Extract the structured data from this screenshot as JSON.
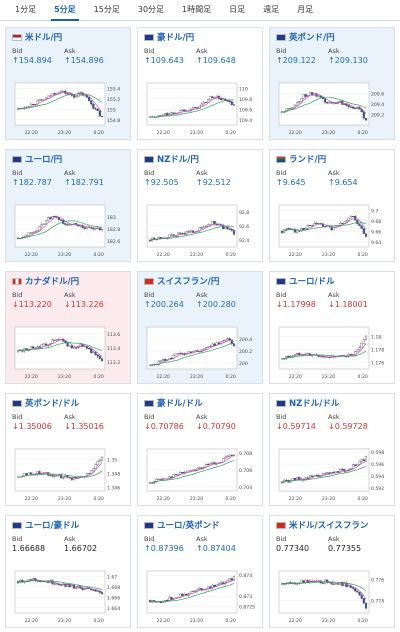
{
  "tabs": [
    {
      "label": "1分足",
      "active": false
    },
    {
      "label": "5分足",
      "active": true
    },
    {
      "label": "15分足",
      "active": false
    },
    {
      "label": "30分足",
      "active": false
    },
    {
      "label": "1時間足",
      "active": false
    },
    {
      "label": "日足",
      "active": false
    },
    {
      "label": "週足",
      "active": false
    },
    {
      "label": "月足",
      "active": false
    }
  ],
  "bid_label": "Bid",
  "ask_label": "Ask",
  "colors": {
    "up": "#1b6ab5",
    "down": "#d23232",
    "ma_short": "#d64dd6",
    "ma_long": "#2aa84a",
    "candle_up": "#ffffff",
    "candle_down": "#2c5aa8"
  },
  "cards": [
    {
      "pair": "米ドル/円",
      "flag": "us",
      "bg": "blue",
      "dir": "up",
      "bid": "154.894",
      "ask": "154.896",
      "chart_data": {
        "type": "candlestick",
        "x_ticks": [
          "22:20",
          "23:20",
          "0:20"
        ],
        "y_ticks": [
          "155.4",
          "155.2",
          "155",
          "154.8"
        ],
        "ylim": [
          154.7,
          155.5
        ],
        "trend": [
          155.0,
          155.05,
          155.1,
          155.15,
          155.2,
          155.3,
          155.35,
          155.3,
          155.25,
          155.3,
          155.2,
          155.0,
          154.85
        ]
      }
    },
    {
      "pair": "豪ドル/円",
      "flag": "au",
      "bg": "white",
      "dir": "up",
      "bid": "109.643",
      "ask": "109.648",
      "chart_data": {
        "type": "candlestick",
        "x_ticks": [
          "22:20",
          "23:20",
          "0:20"
        ],
        "y_ticks": [
          "110",
          "109.8",
          "109.6",
          "109.4"
        ],
        "ylim": [
          109.3,
          110.1
        ],
        "trend": [
          109.45,
          109.45,
          109.5,
          109.5,
          109.55,
          109.6,
          109.6,
          109.65,
          109.75,
          109.85,
          109.8,
          109.75,
          109.65
        ]
      }
    },
    {
      "pair": "英ポンド/円",
      "flag": "uk",
      "bg": "blue",
      "dir": "up",
      "bid": "209.122",
      "ask": "209.130",
      "chart_data": {
        "type": "candlestick",
        "x_ticks": [
          "22:20",
          "23:20",
          "0:20"
        ],
        "y_ticks": [
          "209.6",
          "209.4",
          "209.2"
        ],
        "ylim": [
          209.0,
          209.8
        ],
        "trend": [
          209.25,
          209.3,
          209.4,
          209.55,
          209.6,
          209.55,
          209.45,
          209.4,
          209.45,
          209.4,
          209.35,
          209.3,
          209.1
        ]
      }
    },
    {
      "pair": "ユーロ/円",
      "flag": "eu",
      "bg": "blue",
      "dir": "up",
      "bid": "182.787",
      "ask": "182.791",
      "chart_data": {
        "type": "candlestick",
        "x_ticks": [
          "22:20",
          "23:20",
          "0:20"
        ],
        "y_ticks": [
          "183",
          "182.8",
          "182.6"
        ],
        "ylim": [
          182.5,
          183.2
        ],
        "trend": [
          182.65,
          182.7,
          182.75,
          182.8,
          182.95,
          183.0,
          182.95,
          182.85,
          182.9,
          182.85,
          182.8,
          182.8,
          182.78
        ]
      }
    },
    {
      "pair": "NZドル/円",
      "flag": "nz",
      "bg": "white",
      "dir": "up",
      "bid": "92.505",
      "ask": "92.512",
      "chart_data": {
        "type": "candlestick",
        "x_ticks": [
          "22:20",
          "23:20",
          "0:20"
        ],
        "y_ticks": [
          "92.8",
          "92.6",
          "92.4"
        ],
        "ylim": [
          92.3,
          92.9
        ],
        "trend": [
          92.4,
          92.42,
          92.45,
          92.45,
          92.48,
          92.5,
          92.52,
          92.55,
          92.6,
          92.65,
          92.6,
          92.55,
          92.5
        ]
      }
    },
    {
      "pair": "ランド/円",
      "flag": "za",
      "bg": "white",
      "dir": "up",
      "bid": "9.645",
      "ask": "9.654",
      "chart_data": {
        "type": "candlestick",
        "x_ticks": [
          "22:20",
          "23:20",
          "0:20"
        ],
        "y_ticks": [
          "9.7",
          "9.68",
          "9.66",
          "9.64"
        ],
        "ylim": [
          9.63,
          9.71
        ],
        "trend": [
          9.66,
          9.665,
          9.66,
          9.665,
          9.67,
          9.675,
          9.67,
          9.665,
          9.67,
          9.68,
          9.69,
          9.67,
          9.65
        ]
      }
    },
    {
      "pair": "カナダドル/円",
      "flag": "ca",
      "bg": "pink",
      "dir": "down",
      "bid": "113.220",
      "ask": "113.226",
      "chart_data": {
        "type": "candlestick",
        "x_ticks": [
          "22:20",
          "23:20",
          "0:20"
        ],
        "y_ticks": [
          "113.6",
          "113.4",
          "113.2"
        ],
        "ylim": [
          113.1,
          113.7
        ],
        "trend": [
          113.35,
          113.38,
          113.4,
          113.42,
          113.45,
          113.5,
          113.52,
          113.45,
          113.4,
          113.45,
          113.4,
          113.3,
          113.2
        ]
      }
    },
    {
      "pair": "スイスフラン/円",
      "flag": "ch",
      "bg": "blue",
      "dir": "up",
      "bid": "200.264",
      "ask": "200.280",
      "chart_data": {
        "type": "candlestick",
        "x_ticks": [
          "22:20",
          "23:20",
          "0:20"
        ],
        "y_ticks": [
          "200.4",
          "200.2",
          "200"
        ],
        "ylim": [
          199.9,
          200.6
        ],
        "trend": [
          199.95,
          200.0,
          200.05,
          200.1,
          200.15,
          200.15,
          200.2,
          200.2,
          200.25,
          200.3,
          200.35,
          200.4,
          200.3
        ]
      }
    },
    {
      "pair": "ユーロ/ドル",
      "flag": "eu",
      "bg": "white",
      "dir": "down",
      "bid": "1.17998",
      "ask": "1.18001",
      "chart_data": {
        "type": "candlestick",
        "x_ticks": [
          "22:20",
          "23:20",
          "0:20"
        ],
        "y_ticks": [
          "1.18",
          "1.178",
          "1.176"
        ],
        "ylim": [
          1.175,
          1.1815
        ],
        "trend": [
          1.1765,
          1.177,
          1.1772,
          1.1775,
          1.1772,
          1.177,
          1.1768,
          1.177,
          1.1768,
          1.1772,
          1.177,
          1.178,
          1.18
        ]
      }
    },
    {
      "pair": "英ポンド/ドル",
      "flag": "uk",
      "bg": "white",
      "dir": "down",
      "bid": "1.35006",
      "ask": "1.35016",
      "chart_data": {
        "type": "candlestick",
        "x_ticks": [
          "22:20",
          "23:20",
          "0:20"
        ],
        "y_ticks": [
          "1.35",
          "1.348",
          "1.346"
        ],
        "ylim": [
          1.3455,
          1.3515
        ],
        "trend": [
          1.3475,
          1.348,
          1.3478,
          1.3482,
          1.348,
          1.3478,
          1.3476,
          1.3475,
          1.3473,
          1.3476,
          1.348,
          1.349,
          1.3505
        ]
      }
    },
    {
      "pair": "豪ドル/ドル",
      "flag": "au",
      "bg": "white",
      "dir": "down",
      "bid": "0.70786",
      "ask": "0.70790",
      "chart_data": {
        "type": "candlestick",
        "x_ticks": [
          "22:20",
          "23:20",
          "0:20"
        ],
        "y_ticks": [
          "0.708",
          "0.706",
          "0.704"
        ],
        "ylim": [
          0.7035,
          0.7085
        ],
        "trend": [
          0.7045,
          0.7048,
          0.705,
          0.7052,
          0.7055,
          0.7058,
          0.706,
          0.7062,
          0.7065,
          0.7068,
          0.707,
          0.7075,
          0.7078
        ]
      }
    },
    {
      "pair": "NZドル/ドル",
      "flag": "nz",
      "bg": "white",
      "dir": "down",
      "bid": "0.59714",
      "ask": "0.59728",
      "chart_data": {
        "type": "candlestick",
        "x_ticks": [
          "22:20",
          "23:20",
          "0:20"
        ],
        "y_ticks": [
          "0.598",
          "0.596",
          "0.594",
          "0.592"
        ],
        "ylim": [
          0.5915,
          0.5985
        ],
        "trend": [
          0.593,
          0.5932,
          0.5935,
          0.5935,
          0.5938,
          0.594,
          0.5942,
          0.5945,
          0.5948,
          0.595,
          0.5955,
          0.5962,
          0.597
        ]
      }
    },
    {
      "pair": "ユーロ/豪ドル",
      "flag": "euau",
      "bg": "white",
      "dir": "flat",
      "bid": "1.66688",
      "ask": "1.66702",
      "chart_data": {
        "type": "candlestick",
        "x_ticks": [
          "22:20",
          "23:20",
          "0:20"
        ],
        "y_ticks": [
          "1.67",
          "1.668",
          "1.666",
          "1.664"
        ],
        "ylim": [
          1.663,
          1.671
        ],
        "trend": [
          1.669,
          1.6692,
          1.6695,
          1.6692,
          1.669,
          1.6688,
          1.6685,
          1.6683,
          1.668,
          1.6678,
          1.6675,
          1.667,
          1.6668
        ]
      }
    },
    {
      "pair": "ユーロ/英ポンド",
      "flag": "euuk",
      "bg": "white",
      "dir": "up",
      "bid": "0.87396",
      "ask": "0.87404",
      "chart_data": {
        "type": "candlestick",
        "x_ticks": [
          "22:20",
          "23:20",
          "0:20"
        ],
        "y_ticks": [
          "0.874",
          "0.873",
          "0.8725"
        ],
        "ylim": [
          0.8722,
          0.8742
        ],
        "trend": [
          0.8728,
          0.8727,
          0.8728,
          0.8729,
          0.873,
          0.8731,
          0.8732,
          0.8733,
          0.8734,
          0.8735,
          0.8736,
          0.8737,
          0.8739
        ]
      }
    },
    {
      "pair": "米ドル/スイスフラン",
      "flag": "usch",
      "bg": "white",
      "dir": "flat",
      "bid": "0.77340",
      "ask": "0.77355",
      "chart_data": {
        "type": "candlestick",
        "x_ticks": [
          "22:20",
          "23:20",
          "0:20"
        ],
        "y_ticks": [
          "0.776",
          "0.774"
        ],
        "ylim": [
          0.7728,
          0.7768
        ],
        "trend": [
          0.7755,
          0.7756,
          0.7757,
          0.7758,
          0.7758,
          0.7757,
          0.7758,
          0.7757,
          0.7756,
          0.7755,
          0.7752,
          0.7745,
          0.7734
        ]
      }
    }
  ]
}
